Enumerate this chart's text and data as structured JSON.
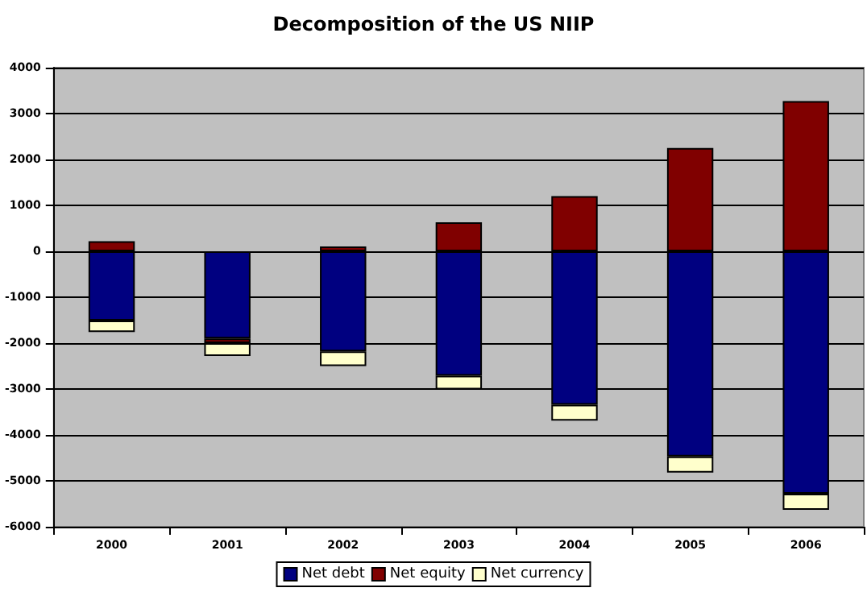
{
  "chart_data": {
    "type": "bar",
    "title": "Decomposition of the US NIIP",
    "categories": [
      "2000",
      "2001",
      "2002",
      "2003",
      "2004",
      "2005",
      "2006"
    ],
    "series": [
      {
        "name": "Net debt",
        "color": "#000080",
        "values": [
          -1510,
          -1900,
          -2180,
          -2710,
          -3340,
          -4470,
          -5280
        ]
      },
      {
        "name": "Net equity",
        "color": "#800000",
        "values": [
          220,
          -100,
          105,
          633,
          1200,
          2250,
          3270
        ]
      },
      {
        "name": "Net currency",
        "color": "#ffffcc",
        "values": [
          -250,
          -280,
          -320,
          -300,
          -350,
          -350,
          -350
        ]
      }
    ],
    "stacked": true,
    "ylim": [
      -6000,
      4000
    ],
    "yticks": [
      -6000,
      -5000,
      -4000,
      -3000,
      -2000,
      -1000,
      0,
      1000,
      2000,
      3000,
      4000
    ],
    "grid": "y",
    "legend": "bottom"
  }
}
